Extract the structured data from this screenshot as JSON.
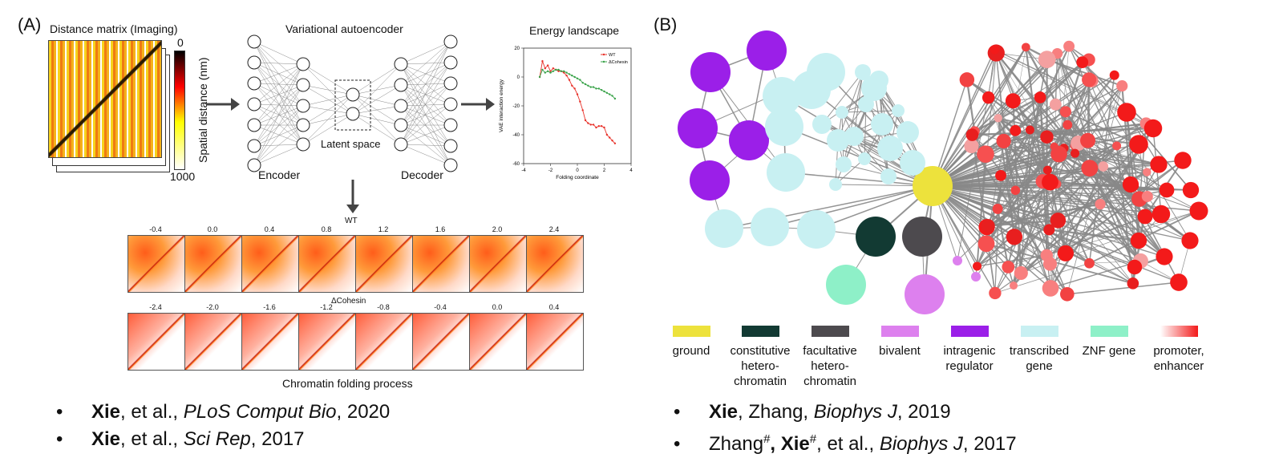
{
  "panelA": {
    "label": "(A)",
    "distance_title": "Distance matrix (Imaging)",
    "colorbar_top": "0",
    "colorbar_bottom": "1000",
    "colorbar_label": "Spatial distance (nm)",
    "vae_title": "Variational autoencoder",
    "latent_label": "Latent space",
    "encoder_label": "Encoder",
    "decoder_label": "Decoder",
    "energy_title": "Energy landscape",
    "wt_row_label": "WT",
    "wt_values": [
      "-0.4",
      "0.0",
      "0.4",
      "0.8",
      "1.2",
      "1.6",
      "2.0",
      "2.4"
    ],
    "cohesin_row_label": "ΔCohesin",
    "cohesin_values": [
      "-2.4",
      "-2.0",
      "-1.6",
      "-1.2",
      "-0.8",
      "-0.4",
      "0.0",
      "0.4"
    ],
    "process_label": "Chromatin folding process"
  },
  "chart_data": {
    "type": "line",
    "title": "",
    "xlabel": "Folding coordinate",
    "ylabel": "VAE interaction energy",
    "xlim": [
      -4,
      4
    ],
    "ylim": [
      -60,
      20
    ],
    "xticks": [
      "-4",
      "-2",
      "0",
      "2",
      "4"
    ],
    "yticks": [
      "20",
      "0",
      "-20",
      "-40",
      "-60"
    ],
    "legend_position": "top-right",
    "series": [
      {
        "name": "WT",
        "color": "#e8322a",
        "x": [
          -2.8,
          -2.6,
          -2.4,
          -2.2,
          -2.0,
          -1.8,
          -1.6,
          -1.4,
          -1.2,
          -1.0,
          -0.8,
          -0.6,
          -0.4,
          -0.2,
          0.0,
          0.2,
          0.4,
          0.6,
          0.8,
          1.0,
          1.2,
          1.4,
          1.6,
          1.8,
          2.0,
          2.2,
          2.4,
          2.6,
          2.8
        ],
        "y": [
          0,
          11,
          6,
          8,
          4,
          6,
          5,
          4,
          4,
          3,
          1,
          -2,
          -6,
          -8,
          -12,
          -17,
          -23,
          -30,
          -32,
          -33,
          -33,
          -35,
          -34,
          -34,
          -35,
          -40,
          -42,
          -44,
          -46
        ]
      },
      {
        "name": "ΔCohesin",
        "color": "#3aa34a",
        "x": [
          -2.8,
          -2.6,
          -2.4,
          -2.2,
          -2.0,
          -1.8,
          -1.6,
          -1.4,
          -1.2,
          -1.0,
          -0.8,
          -0.6,
          -0.4,
          -0.2,
          0.0,
          0.2,
          0.4,
          0.6,
          0.8,
          1.0,
          1.2,
          1.4,
          1.6,
          1.8,
          2.0,
          2.2,
          2.4,
          2.6,
          2.8
        ],
        "y": [
          0,
          5,
          3,
          4,
          3,
          4,
          5,
          5,
          4,
          4,
          3,
          2,
          1,
          0,
          -1,
          -2,
          -4,
          -5,
          -6,
          -7,
          -7,
          -8,
          -8,
          -9,
          -10,
          -11,
          -12,
          -13,
          -15
        ]
      }
    ]
  },
  "panelB": {
    "label": "(B)",
    "legend": [
      {
        "label": "ground",
        "color": "#ede23c"
      },
      {
        "label": "constitutive hetero-chromatin",
        "color": "#123a33"
      },
      {
        "label": "facultative hetero-chromatin",
        "color": "#4d4a4e"
      },
      {
        "label": "bivalent",
        "color": "#dd80ee"
      },
      {
        "label": "intragenic regulator",
        "color": "#9b1fe8"
      },
      {
        "label": "transcribed gene",
        "color": "#c8f0f2"
      },
      {
        "label": "ZNF gene",
        "color": "#8ef0c8"
      },
      {
        "label": "promoter, enhancer",
        "color": "#f31a1a"
      }
    ]
  },
  "references": {
    "left": [
      {
        "author": "Xie",
        "rest": ", et al., ",
        "journal": "PLoS Comput Bio",
        "year": ", 2020"
      },
      {
        "author": "Xie",
        "rest": ", et al., ",
        "journal": "Sci Rep",
        "year": ", 2017"
      }
    ],
    "right1": {
      "author": "Xie",
      "rest": ", Zhang, ",
      "journal": "Biophys J",
      "year": ", 2019"
    },
    "right2": {
      "pre": "Zhang",
      "mark1": "#",
      "mid": ", Xie",
      "mark2": "#",
      "rest": ", et al., ",
      "journal": "Biophys J",
      "year": ", 2017"
    },
    "bullet": "•"
  }
}
